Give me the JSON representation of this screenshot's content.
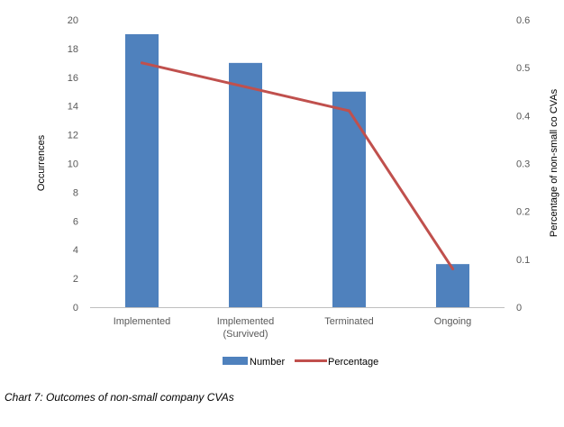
{
  "chart_data": {
    "type": "bar+line",
    "categories": [
      "Implemented",
      "Implemented\n(Survived)",
      "Terminated",
      "Ongoing"
    ],
    "series": [
      {
        "name": "Number",
        "type": "bar",
        "axis": "left",
        "values": [
          19,
          17,
          15,
          3
        ],
        "color": "#4F81BD"
      },
      {
        "name": "Percentage",
        "type": "line",
        "axis": "right",
        "values": [
          0.51,
          0.46,
          0.41,
          0.08
        ],
        "color": "#C0504D"
      }
    ],
    "ylabel": "Occurrences",
    "y2label": "Percentage of non-small co CVAs",
    "ylim": [
      0,
      20
    ],
    "yticks": [
      0,
      2,
      4,
      6,
      8,
      10,
      12,
      14,
      16,
      18,
      20
    ],
    "y2lim": [
      0,
      0.6
    ],
    "y2ticks": [
      "0",
      "0.1",
      "0.2",
      "0.3",
      "0.4",
      "0.5",
      "0.6"
    ],
    "legend_position": "bottom",
    "grid": false
  },
  "caption": "Chart 7: Outcomes of non-small company CVAs"
}
